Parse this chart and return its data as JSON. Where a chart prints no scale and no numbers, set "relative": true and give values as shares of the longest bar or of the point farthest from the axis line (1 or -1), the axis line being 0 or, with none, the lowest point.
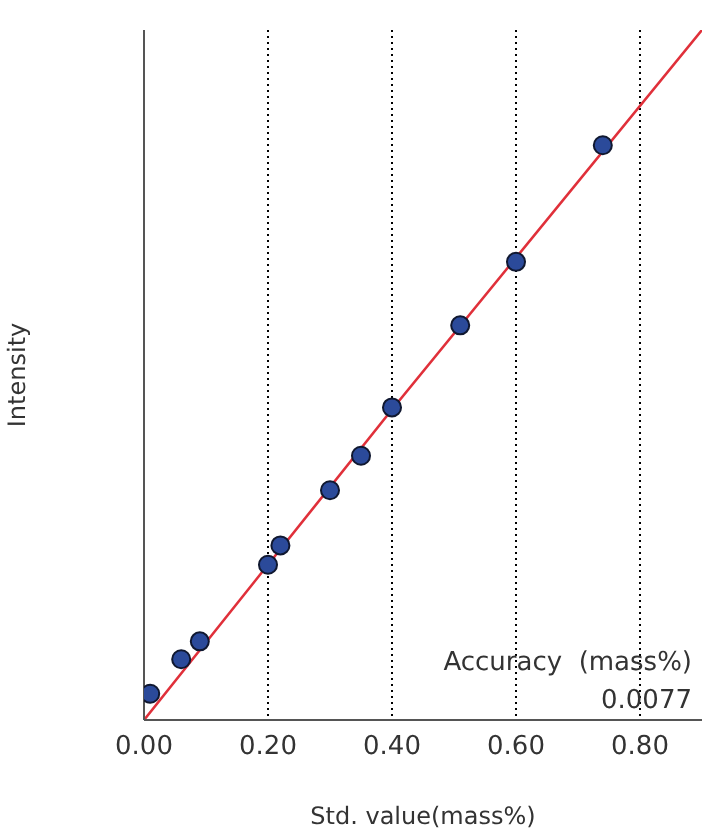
{
  "chart_data": {
    "type": "line",
    "xlabel": "Std. value(mass%)",
    "ylabel": "Intensity",
    "relative": true,
    "xlim": [
      0,
      0.9
    ],
    "xticks": [
      {
        "value": 0,
        "label": "0.00"
      },
      {
        "value": 0.2,
        "label": "0.20"
      },
      {
        "value": 0.4,
        "label": "0.40"
      },
      {
        "value": 0.6,
        "label": "0.60"
      },
      {
        "value": 0.8,
        "label": "0.80"
      }
    ],
    "tick_labels": "x",
    "grid": "x",
    "series": [
      {
        "type": "scatter",
        "marker": "circle",
        "color": "#2b4a9a",
        "x": [
          0.01,
          0.06,
          0.09,
          0.2,
          0.22,
          0.3,
          0.35,
          0.4,
          0.51,
          0.6,
          0.74
        ],
        "values": [
          0.038,
          0.088,
          0.114,
          0.225,
          0.253,
          0.333,
          0.383,
          0.453,
          0.572,
          0.664,
          0.833
        ]
      },
      {
        "type": "line",
        "color": "#e0303a",
        "line_style": "solid",
        "x": [
          0,
          0.4,
          0.9
        ],
        "values": [
          0,
          0.45,
          1
        ]
      }
    ],
    "annotations": [
      "Accuracy  (mass%)",
      "0.0077"
    ]
  }
}
